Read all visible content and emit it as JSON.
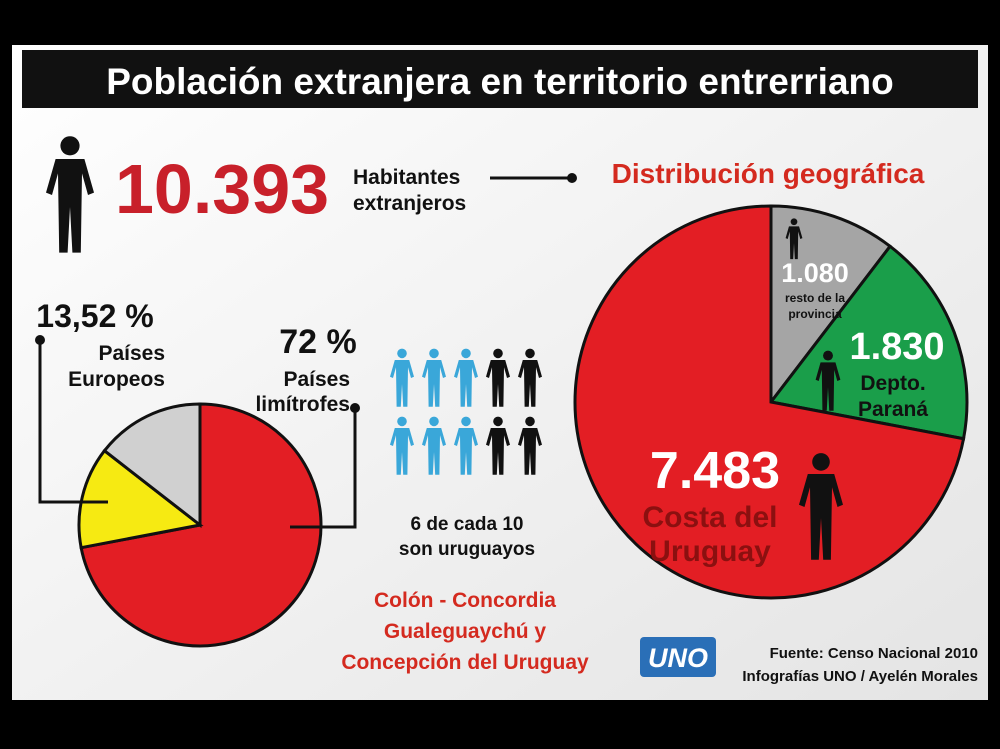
{
  "title": "Población extranjera en territorio entrerriano",
  "total": "10.393",
  "total_label": [
    "Habitantes",
    "extranjeros"
  ],
  "chart_data": [
    {
      "type": "pie",
      "categories": [
        [
          "Países",
          "limítrofes"
        ],
        [
          "Países",
          "Europeos"
        ],
        null
      ],
      "values": [
        72,
        13.52,
        14.48
      ],
      "value_labels": [
        "72 %",
        "13,52 %",
        null
      ],
      "colors": [
        "#e31e24",
        "#f6ea12",
        "#d0d0d0"
      ]
    },
    {
      "type": "pie",
      "title": "Distribución geográfica",
      "categories": [
        [
          "resto de la",
          "provincia"
        ],
        [
          "Depto.",
          "Paraná"
        ],
        [
          "Costa del",
          "Uruguay"
        ]
      ],
      "values": [
        1080,
        1830,
        7483
      ],
      "value_labels": [
        "1.080",
        "1.830",
        "7.483"
      ],
      "colors": [
        "#a5a5a5",
        "#1a9e4a",
        "#e31e24"
      ]
    }
  ],
  "pictogram_caption": [
    "6 de cada 10",
    "son uruguayos"
  ],
  "cities": [
    "Colón - Concordia",
    "Gualeguaychú y",
    "Concepción del Uruguay"
  ],
  "logo": "UNO",
  "source": [
    "Fuente: Censo Nacional 2010",
    "Infografías UNO / Ayelén Morales"
  ]
}
